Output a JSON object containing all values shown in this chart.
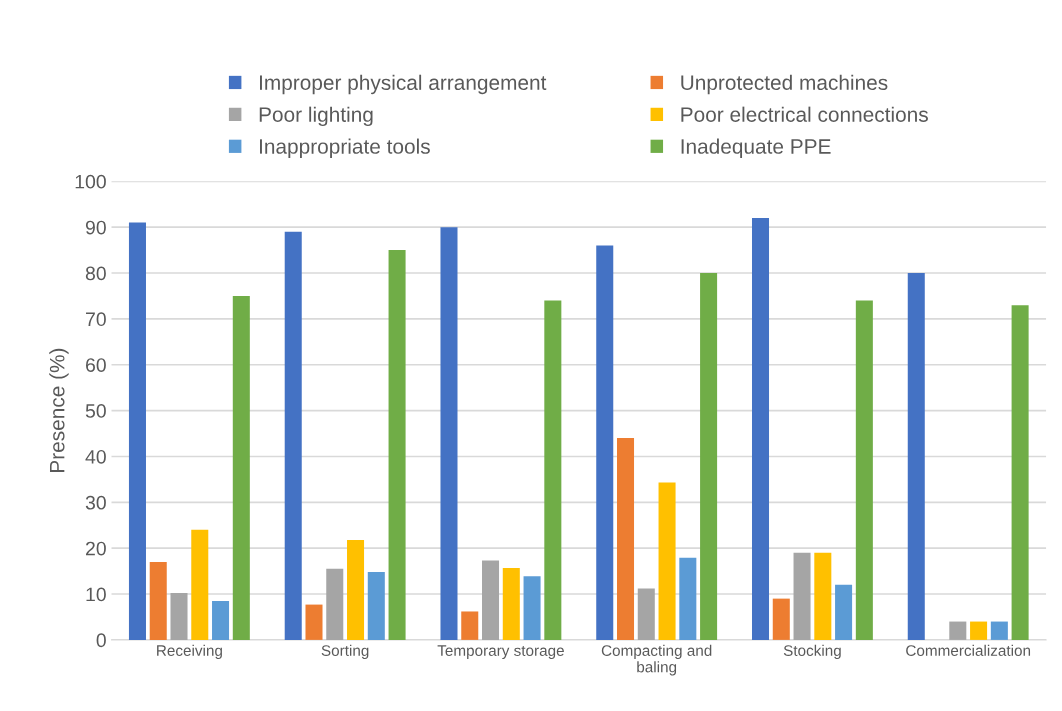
{
  "chart_data": {
    "type": "bar",
    "ylabel": "Presence (%)",
    "categories": [
      "Receiving",
      "Sorting",
      "Temporary storage",
      "Compacting and\nbaling",
      "Stocking",
      "Commercialization"
    ],
    "series": [
      {
        "name": "Improper physical arrangement",
        "color": "#4472c4",
        "values": [
          91,
          89,
          90,
          86,
          92,
          80
        ]
      },
      {
        "name": "Unprotected machines",
        "color": "#ed7d31",
        "values": [
          17,
          7.7,
          6.2,
          44,
          9,
          0
        ]
      },
      {
        "name": "Poor lighting",
        "color": "#a5a5a5",
        "values": [
          10.2,
          15.5,
          17.3,
          11.2,
          19,
          4
        ]
      },
      {
        "name": "Poor electrical connections",
        "color": "#ffc000",
        "values": [
          24,
          21.8,
          15.7,
          34.3,
          19,
          4
        ]
      },
      {
        "name": "Inappropriate tools",
        "color": "#5b9bd5",
        "values": [
          8.5,
          14.8,
          13.9,
          17.9,
          12,
          4
        ]
      },
      {
        "name": "Inadequate PPE",
        "color": "#70ad47",
        "values": [
          75,
          85,
          74,
          80,
          74,
          73
        ]
      }
    ],
    "ylim": [
      0,
      100
    ],
    "yticks": [
      0,
      10,
      20,
      30,
      40,
      50,
      60,
      70,
      80,
      90,
      100
    ],
    "grid": "y",
    "legend": "top"
  }
}
